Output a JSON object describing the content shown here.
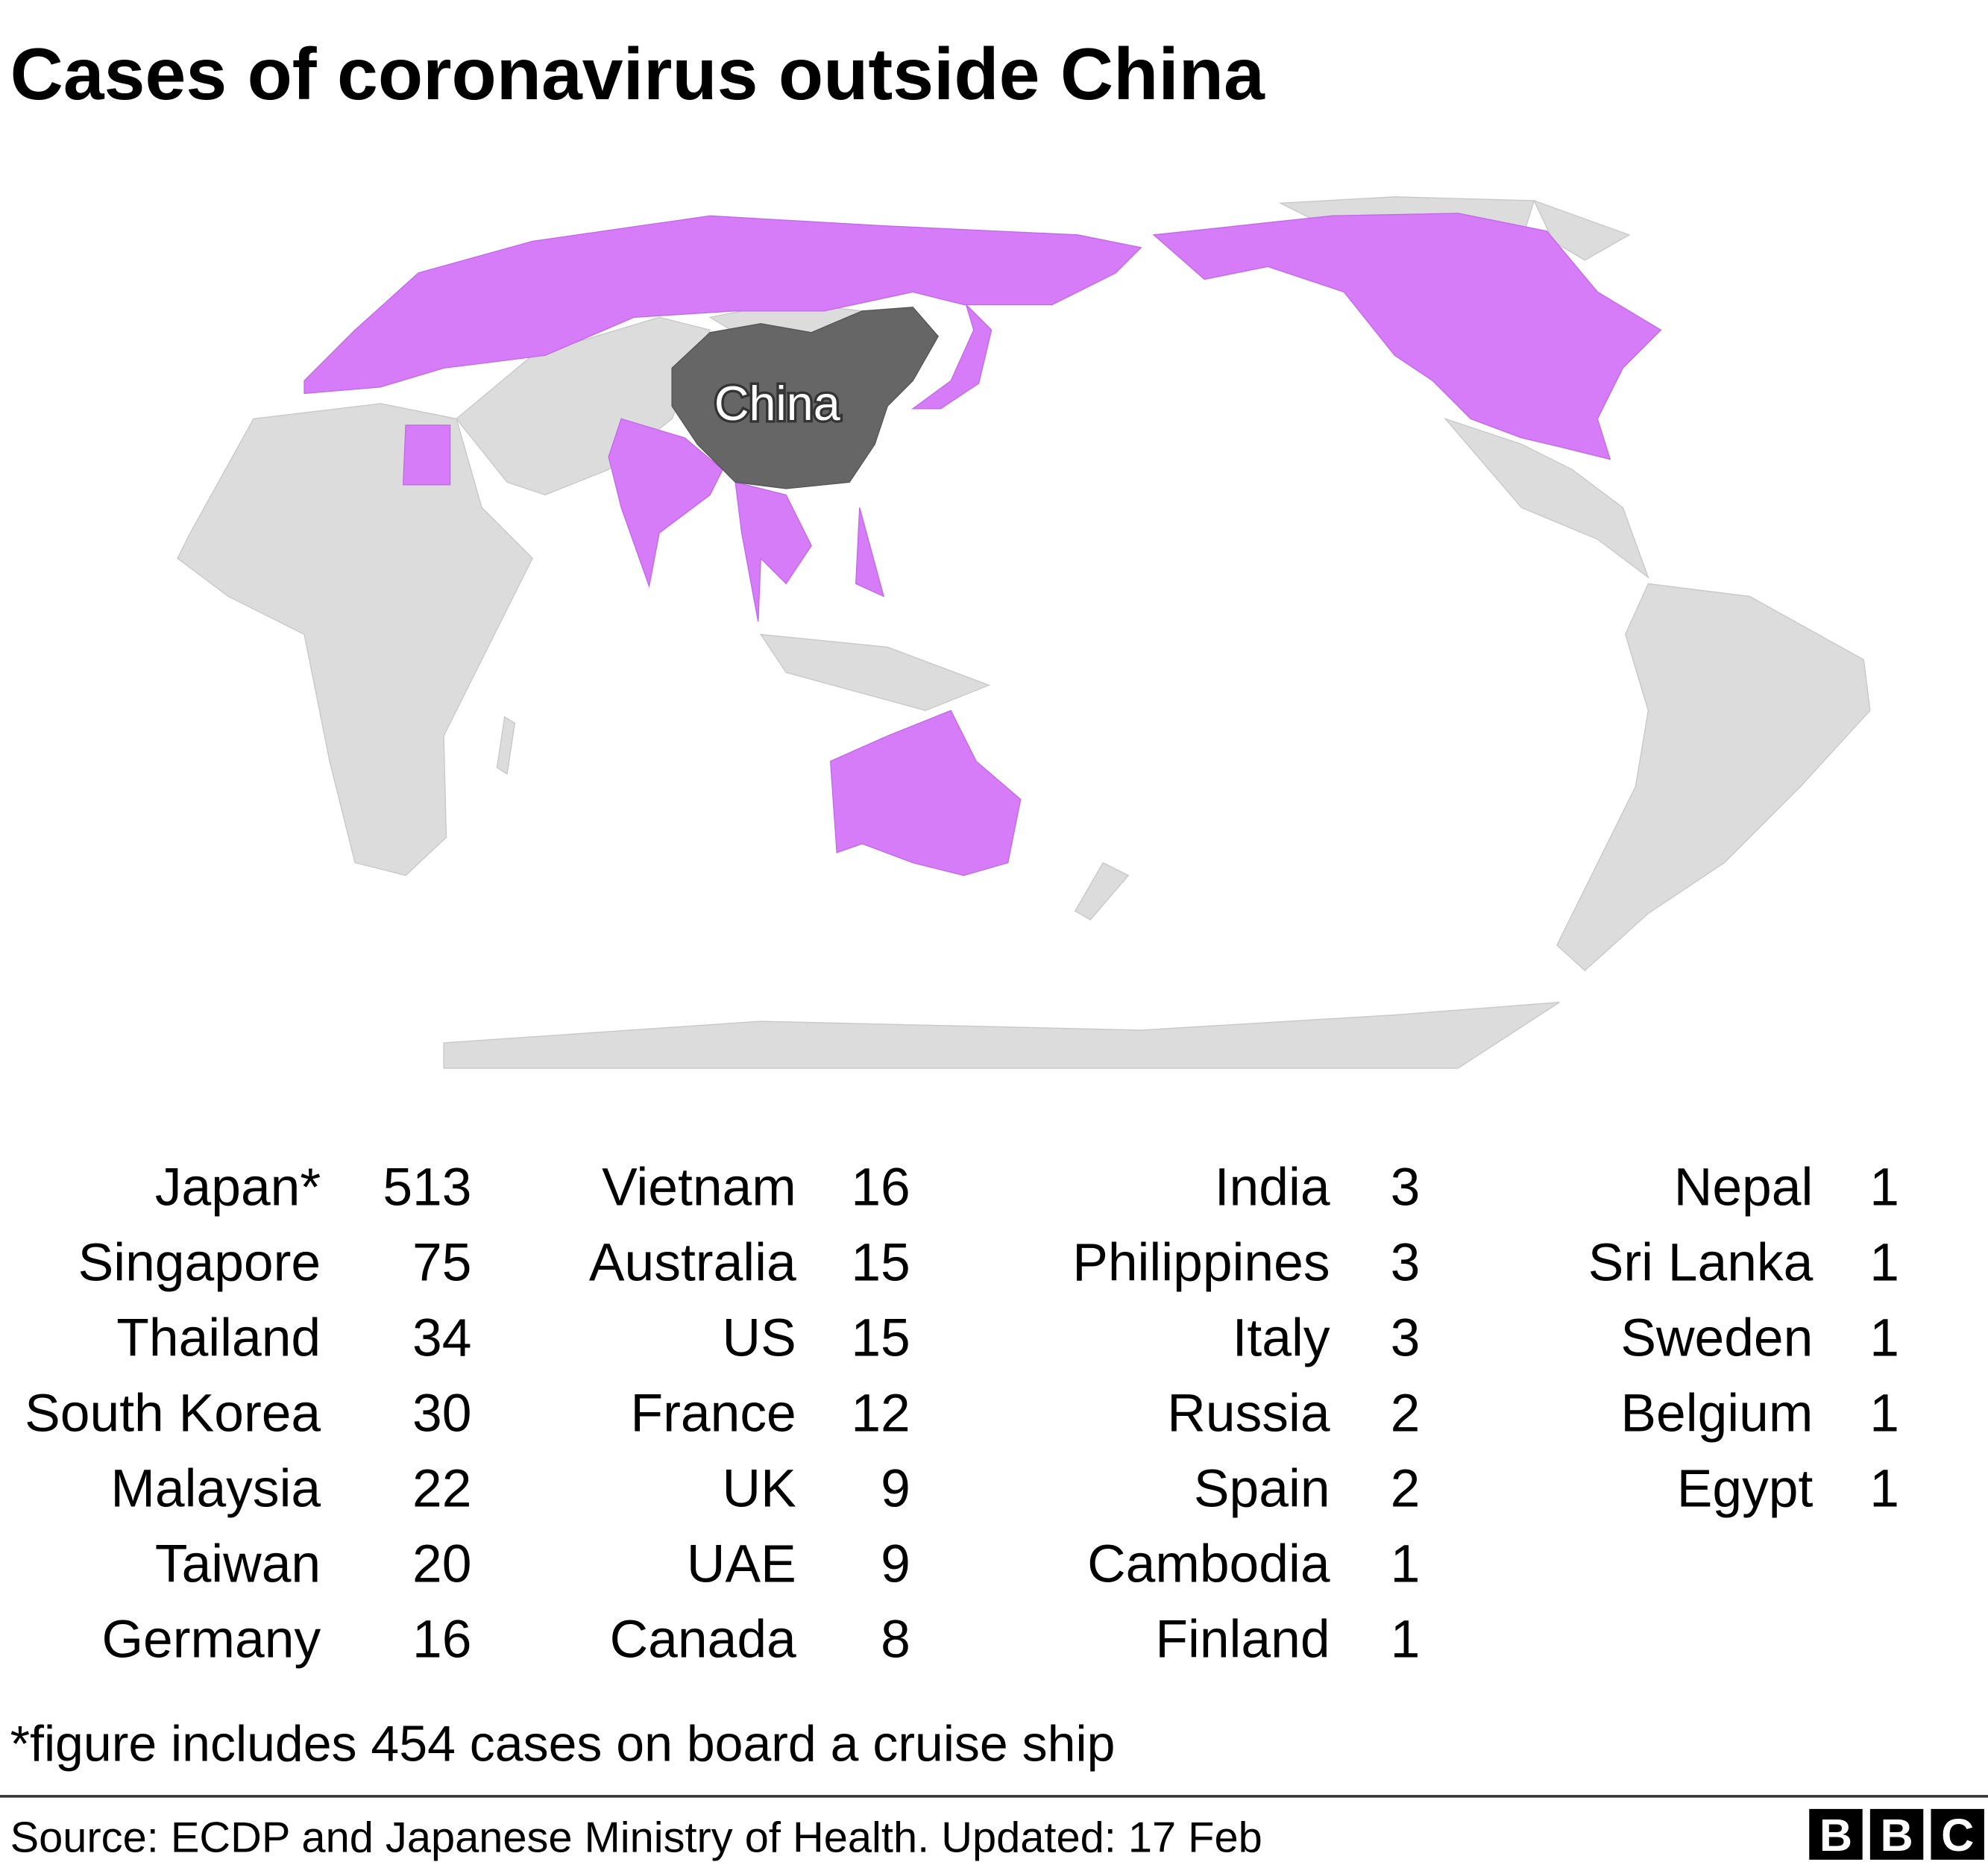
{
  "header": {
    "title": "Cases of coronavirus outside China"
  },
  "map": {
    "label": "China"
  },
  "table": {
    "columns": [
      [
        {
          "name": "Japan*",
          "value": 513
        },
        {
          "name": "Singapore",
          "value": 75
        },
        {
          "name": "Thailand",
          "value": 34
        },
        {
          "name": "South Korea",
          "value": 30
        },
        {
          "name": "Malaysia",
          "value": 22
        },
        {
          "name": "Taiwan",
          "value": 20
        },
        {
          "name": "Germany",
          "value": 16
        }
      ],
      [
        {
          "name": "Vietnam",
          "value": 16
        },
        {
          "name": "Australia",
          "value": 15
        },
        {
          "name": "US",
          "value": 15
        },
        {
          "name": "France",
          "value": 12
        },
        {
          "name": "UK",
          "value": 9
        },
        {
          "name": "UAE",
          "value": 9
        },
        {
          "name": "Canada",
          "value": 8
        }
      ],
      [
        {
          "name": "India",
          "value": 3
        },
        {
          "name": "Philippines",
          "value": 3
        },
        {
          "name": "Italy",
          "value": 3
        },
        {
          "name": "Russia",
          "value": 2
        },
        {
          "name": "Spain",
          "value": 2
        },
        {
          "name": "Cambodia",
          "value": 1
        },
        {
          "name": "Finland",
          "value": 1
        }
      ],
      [
        {
          "name": "Nepal",
          "value": 1
        },
        {
          "name": "Sri Lanka",
          "value": 1
        },
        {
          "name": "Sweden",
          "value": 1
        },
        {
          "name": "Belgium",
          "value": 1
        },
        {
          "name": "Egypt",
          "value": 1
        }
      ]
    ]
  },
  "footnote": "*figure includes 454 cases on board a cruise ship",
  "source": "Source: ECDP and Japanese Ministry of Health. Updated: 17 Feb",
  "logo": [
    "B",
    "B",
    "C"
  ]
}
